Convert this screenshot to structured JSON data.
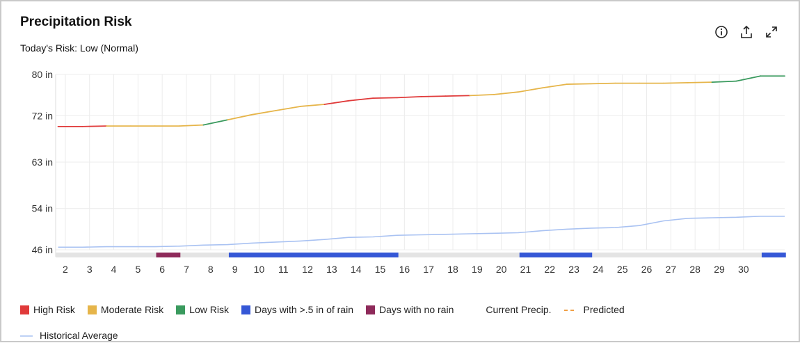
{
  "header": {
    "title": "Precipitation Risk",
    "subtitle": "Today's Risk: Low (Normal)"
  },
  "toolbar": {
    "icons": [
      "info-icon",
      "share-icon",
      "expand-icon"
    ]
  },
  "colors": {
    "high": "#e03a3a",
    "moderate": "#e6b54a",
    "low": "#3a9a5e",
    "rain": "#3557d6",
    "norain": "#8e2a5a",
    "historical": "#a9c2f2",
    "predicted": "#f0a046",
    "grid": "#ececec",
    "strip": "#e4e4e4"
  },
  "chart_data": {
    "type": "line",
    "x": [
      1,
      2,
      3,
      4,
      5,
      6,
      7,
      8,
      9,
      10,
      11,
      12,
      13,
      14,
      15,
      16,
      17,
      18,
      19,
      20,
      21,
      22,
      23,
      24,
      25,
      26,
      27,
      28,
      29,
      30,
      31
    ],
    "x_tick_labels": [
      "2",
      "3",
      "4",
      "5",
      "6",
      "7",
      "8",
      "9",
      "10",
      "11",
      "12",
      "13",
      "14",
      "15",
      "16",
      "17",
      "18",
      "19",
      "20",
      "21",
      "22",
      "23",
      "24",
      "25",
      "26",
      "27",
      "28",
      "29",
      "30"
    ],
    "y_tick_labels": [
      "80 in",
      "72 in",
      "63 in",
      "54 in",
      "46 in"
    ],
    "y_ticks": [
      80,
      72,
      63,
      54,
      46
    ],
    "ylim": [
      46,
      80
    ],
    "grid": true,
    "series": [
      {
        "name": "Current Precip.",
        "values": [
          69.9,
          69.9,
          70.0,
          70.0,
          70.0,
          70.0,
          70.2,
          71.2,
          72.2,
          73.0,
          73.8,
          74.2,
          74.9,
          75.4,
          75.5,
          75.7,
          75.8,
          75.9,
          76.1,
          76.6,
          77.4,
          78.1,
          78.2,
          78.3,
          78.3,
          78.3,
          78.4,
          78.5,
          78.7,
          79.7,
          79.7
        ],
        "risk": [
          "high",
          "high",
          "moderate",
          "moderate",
          "moderate",
          "moderate",
          "low",
          "moderate",
          "moderate",
          "moderate",
          "moderate",
          "high",
          "high",
          "high",
          "high",
          "high",
          "high",
          "moderate",
          "moderate",
          "moderate",
          "moderate",
          "moderate",
          "moderate",
          "moderate",
          "moderate",
          "moderate",
          "moderate",
          "low",
          "low",
          "low",
          "low"
        ]
      },
      {
        "name": "Historical Average",
        "values": [
          46.5,
          46.5,
          46.6,
          46.6,
          46.6,
          46.7,
          46.9,
          47.0,
          47.3,
          47.5,
          47.7,
          48.0,
          48.4,
          48.5,
          48.8,
          48.9,
          49.0,
          49.1,
          49.2,
          49.3,
          49.7,
          50.0,
          50.2,
          50.3,
          50.7,
          51.6,
          52.1,
          52.2,
          52.3,
          52.5,
          52.5
        ]
      }
    ],
    "day_strip": [
      {
        "type": "norain",
        "from": 5,
        "to": 6
      },
      {
        "type": "rain",
        "from": 8,
        "to": 15
      },
      {
        "type": "rain",
        "from": 20,
        "to": 23
      },
      {
        "type": "rain",
        "from": 30,
        "to": 31
      }
    ],
    "legend": [
      {
        "label": "High Risk",
        "kind": "square",
        "color": "#e03a3a"
      },
      {
        "label": "Moderate Risk",
        "kind": "square",
        "color": "#e6b54a"
      },
      {
        "label": "Low Risk",
        "kind": "square",
        "color": "#3a9a5e"
      },
      {
        "label": "Days with >.5 in of rain",
        "kind": "square",
        "color": "#3557d6"
      },
      {
        "label": "Days with no rain",
        "kind": "square",
        "color": "#8e2a5a"
      },
      {
        "label": "Current Precip.",
        "kind": "gradient-line",
        "color": "#e6b54a"
      },
      {
        "label": "Predicted",
        "kind": "dashed-line",
        "color": "#f0a046"
      },
      {
        "label": "Historical Average",
        "kind": "line",
        "color": "#a9c2f2"
      }
    ],
    "legend_position": "bottom"
  }
}
